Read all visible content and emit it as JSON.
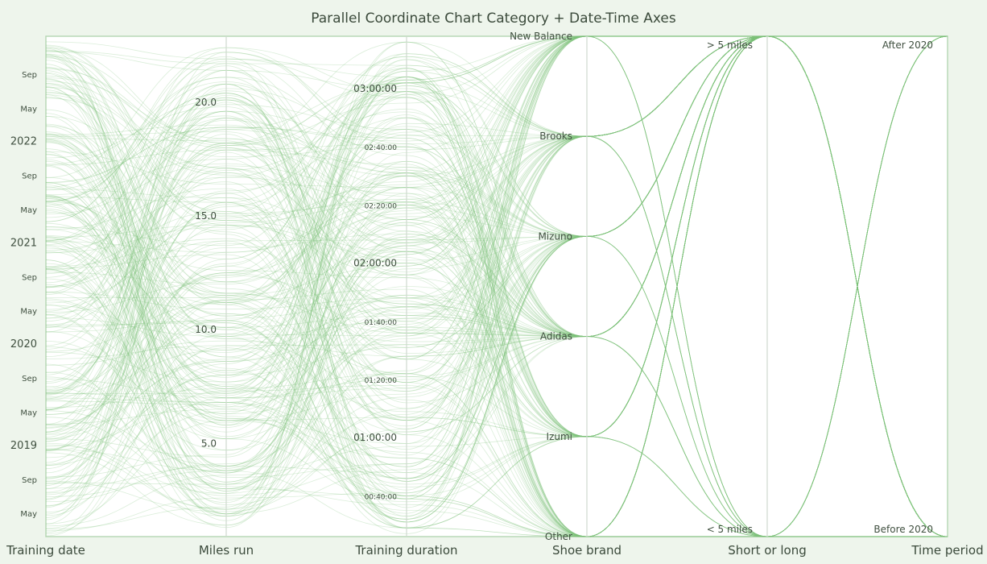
{
  "chart_data": {
    "type": "parallel-coordinates",
    "title": "Parallel Coordinate Chart Category + Date-Time Axes",
    "line_color": "#7dc27a",
    "axes": [
      {
        "name": "Training date",
        "kind": "datetime",
        "range": [
          "2018-02-06",
          "2023-01-16"
        ],
        "ticks": [
          {
            "label": "May",
            "value": "2018-05-01",
            "style": "minor"
          },
          {
            "label": "Sep",
            "value": "2018-09-01",
            "style": "minor"
          },
          {
            "label": "2019",
            "value": "2019-01-01",
            "style": "major"
          },
          {
            "label": "May",
            "value": "2019-05-01",
            "style": "minor"
          },
          {
            "label": "Sep",
            "value": "2019-09-01",
            "style": "minor"
          },
          {
            "label": "2020",
            "value": "2020-01-01",
            "style": "major"
          },
          {
            "label": "May",
            "value": "2020-05-01",
            "style": "minor"
          },
          {
            "label": "Sep",
            "value": "2020-09-01",
            "style": "minor"
          },
          {
            "label": "2021",
            "value": "2021-01-01",
            "style": "major"
          },
          {
            "label": "May",
            "value": "2021-05-01",
            "style": "minor"
          },
          {
            "label": "Sep",
            "value": "2021-09-01",
            "style": "minor"
          },
          {
            "label": "2022",
            "value": "2022-01-01",
            "style": "major"
          },
          {
            "label": "May",
            "value": "2022-05-01",
            "style": "minor"
          },
          {
            "label": "Sep",
            "value": "2022-09-01",
            "style": "minor"
          }
        ]
      },
      {
        "name": "Miles run",
        "kind": "linear",
        "range": [
          0.9,
          22.9
        ],
        "ticks": [
          {
            "label": "5.0",
            "value": 5
          },
          {
            "label": "10.0",
            "value": 10
          },
          {
            "label": "15.0",
            "value": 15
          },
          {
            "label": "20.0",
            "value": 20
          }
        ]
      },
      {
        "name": "Training duration",
        "kind": "duration-minutes",
        "range": [
          26,
          198
        ],
        "ticks": [
          {
            "label": "00:40:00",
            "value": 40,
            "style": "minor"
          },
          {
            "label": "01:00:00",
            "value": 60,
            "style": "major"
          },
          {
            "label": "01:20:00",
            "value": 80,
            "style": "minor"
          },
          {
            "label": "01:40:00",
            "value": 100,
            "style": "minor"
          },
          {
            "label": "02:00:00",
            "value": 120,
            "style": "major"
          },
          {
            "label": "02:20:00",
            "value": 140,
            "style": "minor"
          },
          {
            "label": "02:40:00",
            "value": 160,
            "style": "minor"
          },
          {
            "label": "03:00:00",
            "value": 180,
            "style": "major"
          }
        ]
      },
      {
        "name": "Shoe brand",
        "kind": "category",
        "categories": [
          "Other",
          "Izumi",
          "Adidas",
          "Mizuno",
          "Brooks",
          "New Balance"
        ]
      },
      {
        "name": "Short or long",
        "kind": "category",
        "categories": [
          "< 5 miles",
          "> 5 miles"
        ]
      },
      {
        "name": "Time period",
        "kind": "category",
        "categories": [
          "Before 2020",
          "After 2020"
        ]
      }
    ],
    "series_count": 300
  }
}
